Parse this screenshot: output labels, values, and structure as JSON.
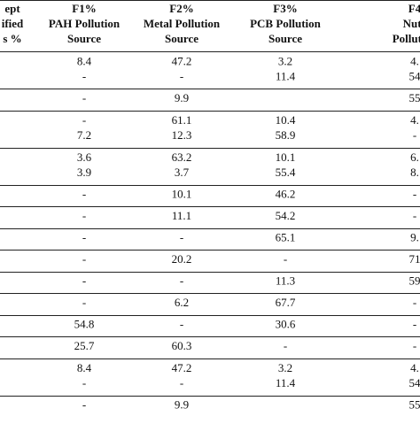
{
  "table": {
    "header": [
      [
        "ept",
        "ified",
        "s %"
      ],
      [
        "F1%",
        "PAH Pollution",
        "Source"
      ],
      [
        "F2%",
        "Metal Pollution",
        "Source"
      ],
      [
        "F3%",
        "PCB Pollution",
        "Source"
      ],
      [
        "F4",
        "Nutr",
        "Pollution"
      ]
    ],
    "groups": [
      [
        [
          "8.4",
          "47.2",
          "3.2",
          "4."
        ],
        [
          "-",
          "-",
          "11.4",
          "54"
        ]
      ],
      [
        [
          "-",
          "9.9",
          null,
          "55"
        ]
      ],
      [
        [
          "-",
          "61.1",
          "10.4",
          "4."
        ],
        [
          "7.2",
          "12.3",
          "58.9",
          "-"
        ]
      ],
      [
        [
          "3.6",
          "63.2",
          "10.1",
          "6."
        ],
        [
          "3.9",
          "3.7",
          "55.4",
          "8."
        ]
      ],
      [
        [
          "-",
          "10.1",
          "46.2",
          "-"
        ]
      ],
      [
        [
          "-",
          "11.1",
          "54.2",
          "-"
        ]
      ],
      [
        [
          "-",
          "-",
          "65.1",
          "9."
        ]
      ],
      [
        [
          "-",
          "20.2",
          "-",
          "71"
        ]
      ],
      [
        [
          "-",
          "-",
          "11.3",
          "59"
        ]
      ],
      [
        [
          "-",
          "6.2",
          "67.7",
          "-"
        ]
      ],
      [
        [
          "54.8",
          "-",
          "30.6",
          "-"
        ]
      ],
      [
        [
          "25.7",
          "60.3",
          "-",
          "-"
        ]
      ],
      [
        [
          "8.4",
          "47.2",
          "3.2",
          "4."
        ],
        [
          "-",
          "-",
          "11.4",
          "54"
        ]
      ],
      [
        [
          "-",
          "9.9",
          null,
          "55"
        ]
      ]
    ]
  }
}
